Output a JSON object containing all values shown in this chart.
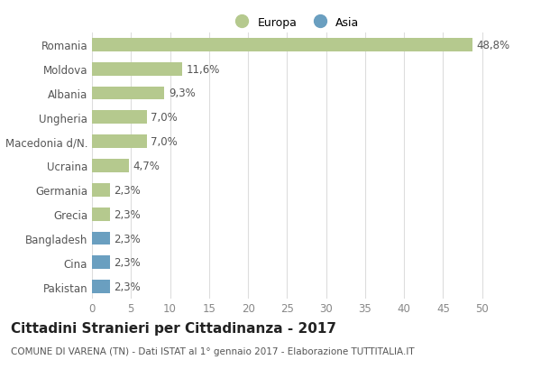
{
  "categories": [
    "Romania",
    "Moldova",
    "Albania",
    "Ungheria",
    "Macedonia d/N.",
    "Ucraina",
    "Germania",
    "Grecia",
    "Bangladesh",
    "Cina",
    "Pakistan"
  ],
  "values": [
    48.8,
    11.6,
    9.3,
    7.0,
    7.0,
    4.7,
    2.3,
    2.3,
    2.3,
    2.3,
    2.3
  ],
  "labels": [
    "48,8%",
    "11,6%",
    "9,3%",
    "7,0%",
    "7,0%",
    "4,7%",
    "2,3%",
    "2,3%",
    "2,3%",
    "2,3%",
    "2,3%"
  ],
  "colors": [
    "#b5c98e",
    "#b5c98e",
    "#b5c98e",
    "#b5c98e",
    "#b5c98e",
    "#b5c98e",
    "#b5c98e",
    "#b5c98e",
    "#6a9fc0",
    "#6a9fc0",
    "#6a9fc0"
  ],
  "europa_color": "#b5c98e",
  "asia_color": "#6a9fc0",
  "xlim": [
    0,
    52
  ],
  "xticks": [
    0,
    5,
    10,
    15,
    20,
    25,
    30,
    35,
    40,
    45,
    50
  ],
  "title": "Cittadini Stranieri per Cittadinanza - 2017",
  "subtitle": "COMUNE DI VARENA (TN) - Dati ISTAT al 1° gennaio 2017 - Elaborazione TUTTITALIA.IT",
  "legend_europa": "Europa",
  "legend_asia": "Asia",
  "background_color": "#ffffff",
  "grid_color": "#dddddd",
  "bar_height": 0.55,
  "label_fontsize": 8.5,
  "tick_fontsize": 8.5,
  "title_fontsize": 11,
  "subtitle_fontsize": 7.5
}
